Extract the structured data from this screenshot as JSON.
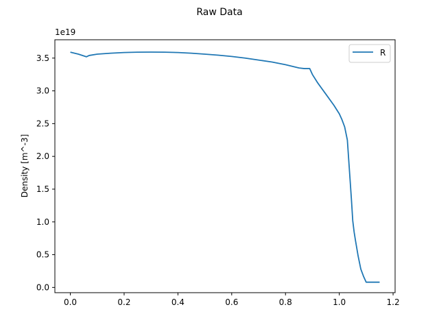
{
  "chart_data": {
    "type": "line",
    "title": "Raw Data",
    "xlabel": "",
    "ylabel": "Density [m^-3]",
    "offset_text": "1e19",
    "xlim": [
      -0.0575,
      1.2075
    ],
    "ylim": [
      -0.08,
      3.78
    ],
    "xticks": [
      0.0,
      0.2,
      0.4,
      0.6,
      0.8,
      1.0,
      1.2
    ],
    "xtick_labels": [
      "0.0",
      "0.2",
      "0.4",
      "0.6",
      "0.8",
      "1.0",
      "1.2"
    ],
    "yticks": [
      0.0,
      0.5,
      1.0,
      1.5,
      2.0,
      2.5,
      3.0,
      3.5
    ],
    "ytick_labels": [
      "0.0",
      "0.5",
      "1.0",
      "1.5",
      "2.0",
      "2.5",
      "3.0",
      "3.5"
    ],
    "grid": false,
    "legend_position": "top-right",
    "series": [
      {
        "name": "R",
        "color": "#1f77b4",
        "x": [
          0.0,
          0.03,
          0.06,
          0.07,
          0.1,
          0.15,
          0.2,
          0.25,
          0.3,
          0.35,
          0.4,
          0.45,
          0.5,
          0.55,
          0.6,
          0.65,
          0.7,
          0.75,
          0.8,
          0.85,
          0.87,
          0.89,
          0.9,
          0.92,
          0.95,
          0.98,
          1.0,
          1.01,
          1.02,
          1.03,
          1.035,
          1.04,
          1.045,
          1.05,
          1.055,
          1.06,
          1.065,
          1.07,
          1.08,
          1.09,
          1.1,
          1.11,
          1.12,
          1.13,
          1.135,
          1.14,
          1.15
        ],
        "y": [
          3.59,
          3.56,
          3.52,
          3.54,
          3.56,
          3.575,
          3.585,
          3.59,
          3.592,
          3.59,
          3.585,
          3.575,
          3.56,
          3.545,
          3.525,
          3.5,
          3.47,
          3.44,
          3.4,
          3.35,
          3.34,
          3.34,
          3.25,
          3.12,
          2.95,
          2.78,
          2.65,
          2.56,
          2.45,
          2.25,
          1.95,
          1.65,
          1.35,
          1.02,
          0.85,
          0.72,
          0.6,
          0.48,
          0.28,
          0.17,
          0.08,
          0.08,
          0.08,
          0.08,
          0.08,
          0.08,
          0.08
        ]
      }
    ]
  }
}
